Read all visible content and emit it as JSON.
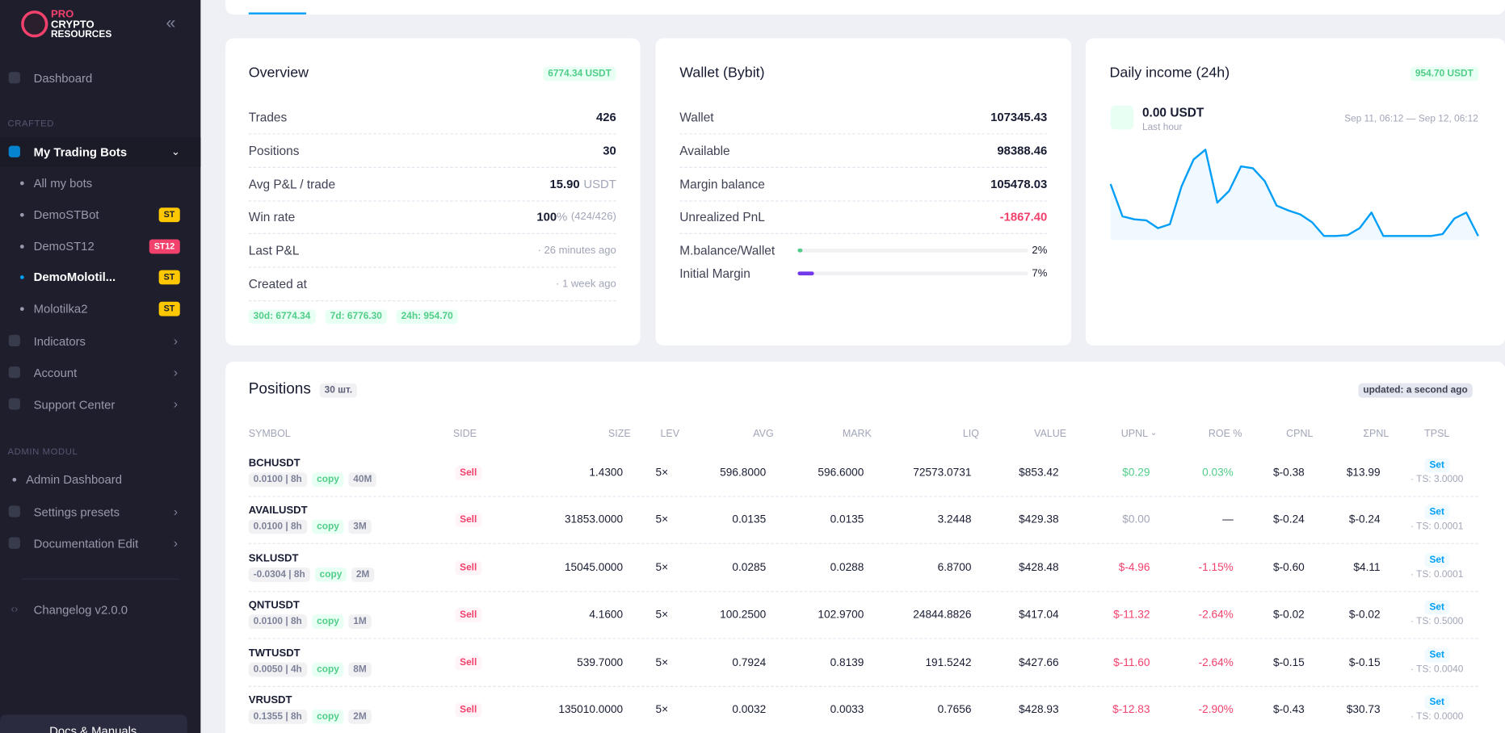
{
  "sidebar": {
    "logo": {
      "line1": "PRO",
      "line2": "CRYPTO",
      "line3": "RESOURCES"
    },
    "dashboard": "Dashboard",
    "section_crafted": "CRAFTED",
    "bots": {
      "title": "My Trading Bots",
      "items": [
        {
          "label": "All my bots"
        },
        {
          "label": "DemoSTBot",
          "badge": "ST",
          "badge_color": "#ffc700"
        },
        {
          "label": "DemoST12",
          "badge": "ST12",
          "badge_color": "#f1416c"
        },
        {
          "label": "DemoMolotil...",
          "badge": "ST",
          "badge_color": "#ffc700"
        },
        {
          "label": "Molotilka2",
          "badge": "ST",
          "badge_color": "#ffc700"
        }
      ]
    },
    "menu": [
      "Indicators",
      "Account",
      "Support Center"
    ],
    "section_admin": "ADMIN MODUL",
    "admin_dashboard": "Admin Dashboard",
    "admin_menu": [
      "Settings presets",
      "Documentation Edit"
    ],
    "changelog": "Changelog v2.0.0",
    "docs_button": "Docs & Manuals"
  },
  "overview": {
    "title": "Overview",
    "badge": "6774.34 USDT",
    "rows": [
      {
        "label": "Trades",
        "value": "426"
      },
      {
        "label": "Positions",
        "value": "30"
      },
      {
        "label": "Avg P&L / trade",
        "value": "15.90",
        "unit": "USDT"
      },
      {
        "label": "Win rate",
        "value": "100",
        "unit": "%",
        "note": "(424/426)"
      },
      {
        "label": "Last P&L",
        "note": "· 26 minutes ago"
      },
      {
        "label": "Created at",
        "note": "· 1 week ago"
      }
    ],
    "chips": [
      "30d: 6774.34",
      "7d: 6776.30",
      "24h: 954.70"
    ]
  },
  "wallet": {
    "title": "Wallet (Bybit)",
    "rows": [
      {
        "label": "Wallet",
        "value": "107345.43"
      },
      {
        "label": "Available",
        "value": "98388.46"
      },
      {
        "label": "Margin balance",
        "value": "105478.03"
      },
      {
        "label": "Unrealized PnL",
        "value": "-1867.40",
        "color": "#f1416c"
      }
    ],
    "bars": [
      {
        "label": "M.balance/Wallet",
        "value": "2%",
        "color": "#50cd89"
      },
      {
        "label": "Initial Margin",
        "value": "7%",
        "color": "#7239ea"
      }
    ]
  },
  "daily": {
    "title": "Daily income (24h)",
    "badge": "954.70 USDT",
    "amount": "0.00 USDT",
    "sub": "Last hour",
    "range": "Sep 11, 06:12 — Sep 12, 06:12",
    "chart": {
      "color": "#009ef7",
      "values": [
        57,
        24,
        21,
        20,
        12,
        16,
        55,
        82,
        92,
        38,
        50,
        75,
        73,
        60,
        35,
        30,
        26,
        18,
        4,
        4,
        5,
        12,
        28,
        4,
        4,
        4,
        4,
        4,
        6,
        22,
        28,
        4
      ]
    }
  },
  "positions": {
    "title": "Positions",
    "count": "30 шт.",
    "updated": "updated: a second ago",
    "columns": [
      "SYMBOL",
      "SIDE",
      "SIZE",
      "LEV",
      "AVG",
      "MARK",
      "LIQ",
      "VALUE",
      "UPNL",
      "ROE %",
      "CPNL",
      "ΣPNL",
      "TPSL"
    ],
    "rows": [
      {
        "symbol": "BCHUSDT",
        "funding": "0.0100 | 8h",
        "copy": "copy",
        "tag": "40M",
        "side": "Sell",
        "size": "1.4300",
        "lev": "5×",
        "avg": "596.8000",
        "mark": "596.6000",
        "liq": "72573.0731",
        "value": "$853.42",
        "upnl": "$0.29",
        "roe": "0.03%",
        "cpnl": "$-0.38",
        "spnl": "$13.99",
        "tpsl": "Set",
        "ts": "· TS: 3.0000"
      },
      {
        "symbol": "AVAILUSDT",
        "funding": "0.0100 | 8h",
        "copy": "copy",
        "tag": "3M",
        "side": "Sell",
        "size": "31853.0000",
        "lev": "5×",
        "avg": "0.0135",
        "mark": "0.0135",
        "liq": "3.2448",
        "value": "$429.38",
        "upnl": "$0.00",
        "roe": "—",
        "cpnl": "$-0.24",
        "spnl": "$-0.24",
        "tpsl": "Set",
        "ts": "· TS: 0.0001"
      },
      {
        "symbol": "SKLUSDT",
        "funding": "-0.0304 | 8h",
        "copy": "copy",
        "tag": "2M",
        "side": "Sell",
        "size": "15045.0000",
        "lev": "5×",
        "avg": "0.0285",
        "mark": "0.0288",
        "liq": "6.8700",
        "value": "$428.48",
        "upnl": "$-4.96",
        "roe": "-1.15%",
        "cpnl": "$-0.60",
        "spnl": "$4.11",
        "tpsl": "Set",
        "ts": "· TS: 0.0001"
      },
      {
        "symbol": "QNTUSDT",
        "funding": "0.0100 | 8h",
        "copy": "copy",
        "tag": "1M",
        "side": "Sell",
        "size": "4.1600",
        "lev": "5×",
        "avg": "100.2500",
        "mark": "102.9700",
        "liq": "24844.8826",
        "value": "$417.04",
        "upnl": "$-11.32",
        "roe": "-2.64%",
        "cpnl": "$-0.02",
        "spnl": "$-0.02",
        "tpsl": "Set",
        "ts": "· TS: 0.5000"
      },
      {
        "symbol": "TWTUSDT",
        "funding": "0.0050 | 4h",
        "copy": "copy",
        "tag": "8M",
        "side": "Sell",
        "size": "539.7000",
        "lev": "5×",
        "avg": "0.7924",
        "mark": "0.8139",
        "liq": "191.5242",
        "value": "$427.66",
        "upnl": "$-11.60",
        "roe": "-2.64%",
        "cpnl": "$-0.15",
        "spnl": "$-0.15",
        "tpsl": "Set",
        "ts": "· TS: 0.0040"
      },
      {
        "symbol": "VRUSDT",
        "funding": "0.1355 | 8h",
        "copy": "copy",
        "tag": "2M",
        "side": "Sell",
        "size": "135010.0000",
        "lev": "5×",
        "avg": "0.0032",
        "mark": "0.0033",
        "liq": "0.7656",
        "value": "$428.93",
        "upnl": "$-12.83",
        "roe": "-2.90%",
        "cpnl": "$-0.43",
        "spnl": "$30.73",
        "tpsl": "Set",
        "ts": "· TS: 0.0000"
      }
    ]
  }
}
